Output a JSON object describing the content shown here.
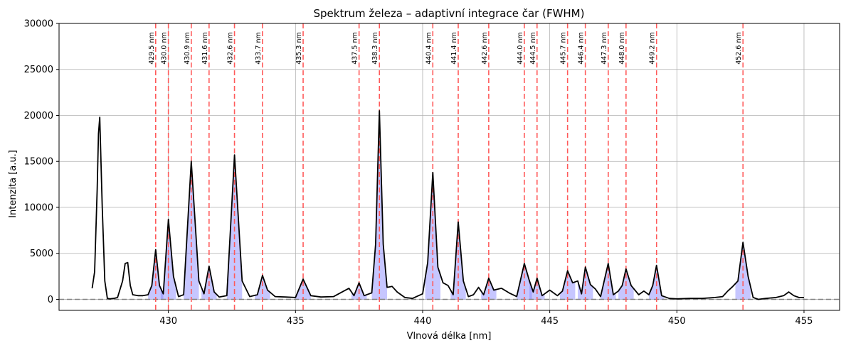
{
  "chart_data": {
    "type": "line",
    "title": "Spektrum železa – adaptivní integrace čar (FWHM)",
    "xlabel": "Vlnová délka [nm]",
    "ylabel": "Intenzita [a.u.]",
    "xlim": [
      425.7,
      456.4
    ],
    "ylim": [
      -1200,
      30000
    ],
    "xticks": [
      430,
      435,
      440,
      445,
      450,
      455
    ],
    "yticks": [
      0,
      5000,
      10000,
      15000,
      20000,
      25000,
      30000
    ],
    "grid": true,
    "colors": {
      "spectrum": "#000000",
      "fill": "#8080ff",
      "lines": "#ff5a5a",
      "baseline": "#808080"
    },
    "lines": [
      {
        "wl": 429.5,
        "label": "429.5 nm"
      },
      {
        "wl": 430.0,
        "label": "430.0 nm"
      },
      {
        "wl": 430.9,
        "label": "430.9 nm"
      },
      {
        "wl": 431.6,
        "label": "431.6 nm"
      },
      {
        "wl": 432.6,
        "label": "432.6 nm"
      },
      {
        "wl": 433.7,
        "label": "433.7 nm"
      },
      {
        "wl": 435.3,
        "label": "435.3 nm"
      },
      {
        "wl": 437.5,
        "label": "437.5 nm"
      },
      {
        "wl": 438.3,
        "label": "438.3 nm"
      },
      {
        "wl": 440.4,
        "label": "440.4 nm"
      },
      {
        "wl": 441.4,
        "label": "441.4 nm"
      },
      {
        "wl": 442.6,
        "label": "442.6 nm"
      },
      {
        "wl": 444.0,
        "label": "444.0 nm"
      },
      {
        "wl": 444.5,
        "label": "444.5 nm"
      },
      {
        "wl": 445.7,
        "label": "445.7 nm"
      },
      {
        "wl": 446.4,
        "label": "446.4 nm"
      },
      {
        "wl": 447.3,
        "label": "447.3 nm"
      },
      {
        "wl": 448.0,
        "label": "448.0 nm"
      },
      {
        "wl": 449.2,
        "label": "449.2 nm"
      },
      {
        "wl": 452.6,
        "label": "452.6 nm"
      }
    ],
    "spectrum": {
      "x": [
        427.0,
        427.1,
        427.2,
        427.25,
        427.3,
        427.4,
        427.5,
        427.6,
        427.7,
        427.85,
        428.0,
        428.2,
        428.3,
        428.4,
        428.5,
        428.6,
        428.8,
        429.0,
        429.2,
        429.35,
        429.5,
        429.65,
        429.8,
        430.0,
        430.2,
        430.4,
        430.6,
        430.9,
        431.2,
        431.4,
        431.6,
        431.8,
        432.0,
        432.3,
        432.6,
        432.9,
        433.2,
        433.5,
        433.7,
        433.9,
        434.2,
        434.6,
        435.0,
        435.3,
        435.6,
        436.0,
        436.5,
        436.9,
        437.1,
        437.3,
        437.5,
        437.7,
        438.0,
        438.15,
        438.3,
        438.45,
        438.6,
        438.8,
        439.0,
        439.3,
        439.6,
        440.0,
        440.2,
        440.4,
        440.6,
        440.8,
        441.0,
        441.2,
        441.4,
        441.6,
        441.8,
        442.0,
        442.2,
        442.4,
        442.6,
        442.8,
        443.1,
        443.4,
        443.7,
        444.0,
        444.2,
        444.35,
        444.5,
        444.7,
        445.0,
        445.3,
        445.5,
        445.7,
        445.9,
        446.1,
        446.25,
        446.4,
        446.6,
        446.8,
        447.0,
        447.3,
        447.5,
        447.7,
        447.85,
        448.0,
        448.2,
        448.5,
        448.7,
        448.9,
        449.05,
        449.2,
        449.4,
        449.7,
        450.0,
        450.5,
        451.0,
        451.5,
        451.8,
        452.0,
        452.2,
        452.4,
        452.6,
        452.8,
        453.0,
        453.2,
        453.5,
        453.9,
        454.2,
        454.4,
        454.6,
        454.8,
        455.0
      ],
      "y": [
        1200,
        3000,
        12000,
        18000,
        19800,
        10000,
        2000,
        100,
        50,
        100,
        200,
        2000,
        3900,
        4000,
        1500,
        500,
        400,
        400,
        500,
        1500,
        5400,
        1500,
        600,
        8700,
        2500,
        300,
        500,
        15000,
        2000,
        600,
        3600,
        800,
        250,
        400,
        15700,
        2000,
        300,
        500,
        2600,
        1000,
        300,
        250,
        200,
        2200,
        400,
        250,
        300,
        900,
        1200,
        400,
        1800,
        400,
        700,
        6000,
        20500,
        6000,
        1300,
        1400,
        800,
        200,
        100,
        600,
        4000,
        13800,
        3500,
        1800,
        1500,
        500,
        8400,
        2000,
        300,
        500,
        1300,
        500,
        2300,
        1000,
        1200,
        700,
        300,
        3900,
        2000,
        800,
        2300,
        400,
        1000,
        400,
        900,
        3100,
        1800,
        2000,
        600,
        3500,
        1600,
        1100,
        300,
        3900,
        500,
        900,
        1500,
        3300,
        1500,
        500,
        900,
        500,
        1500,
        3700,
        400,
        100,
        50,
        100,
        100,
        200,
        300,
        900,
        1400,
        2000,
        6200,
        2500,
        200,
        0,
        100,
        200,
        400,
        800,
        400,
        200,
        200
      ]
    }
  }
}
